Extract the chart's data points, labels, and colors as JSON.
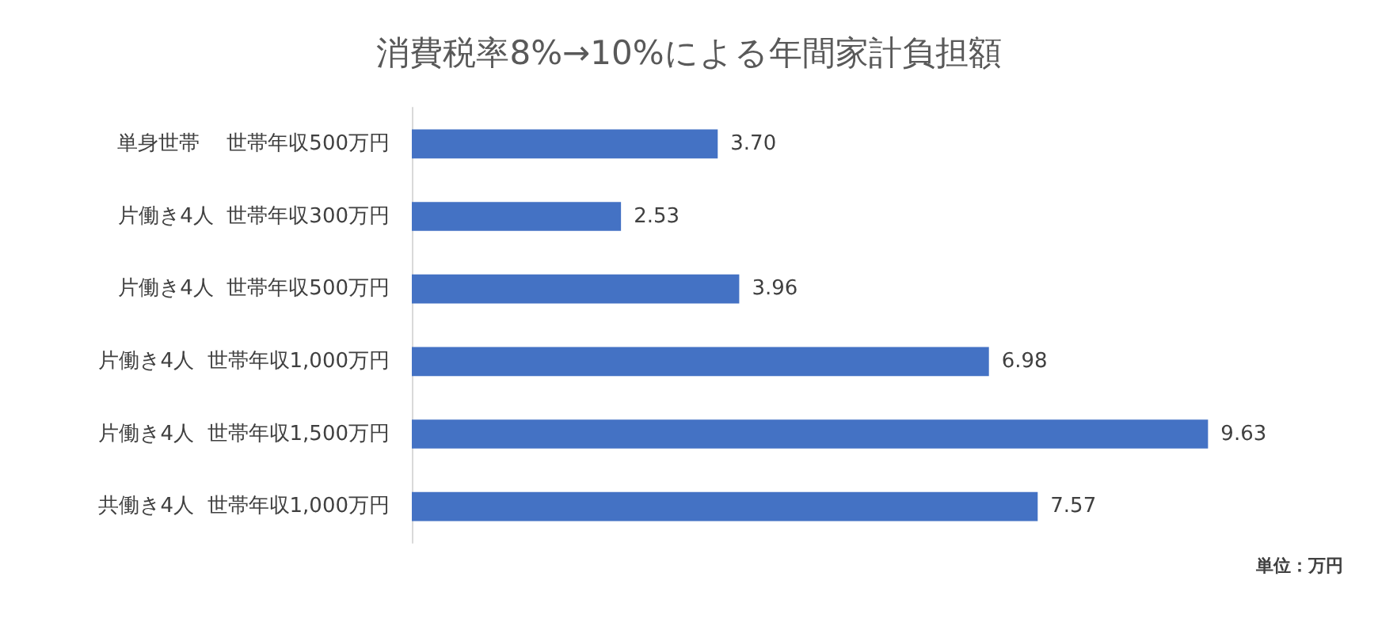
{
  "chart_data": {
    "type": "bar",
    "orientation": "horizontal",
    "title": "消費税率8%→10%による年間家計負担額",
    "categories": [
      "単身世帯　 世帯年収500万円",
      "片働き4人  世帯年収300万円",
      "片働き4人  世帯年収500万円",
      "片働き4人  世帯年収1,000万円",
      "片働き4人  世帯年収1,500万円",
      "共働き4人  世帯年収1,000万円"
    ],
    "values": [
      3.7,
      2.53,
      3.96,
      6.98,
      9.63,
      7.57
    ],
    "value_labels": [
      "3.70",
      "2.53",
      "3.96",
      "6.98",
      "9.63",
      "7.57"
    ],
    "color": "#4472c4",
    "grid": false,
    "annotations": [
      "単位：万円"
    ]
  }
}
